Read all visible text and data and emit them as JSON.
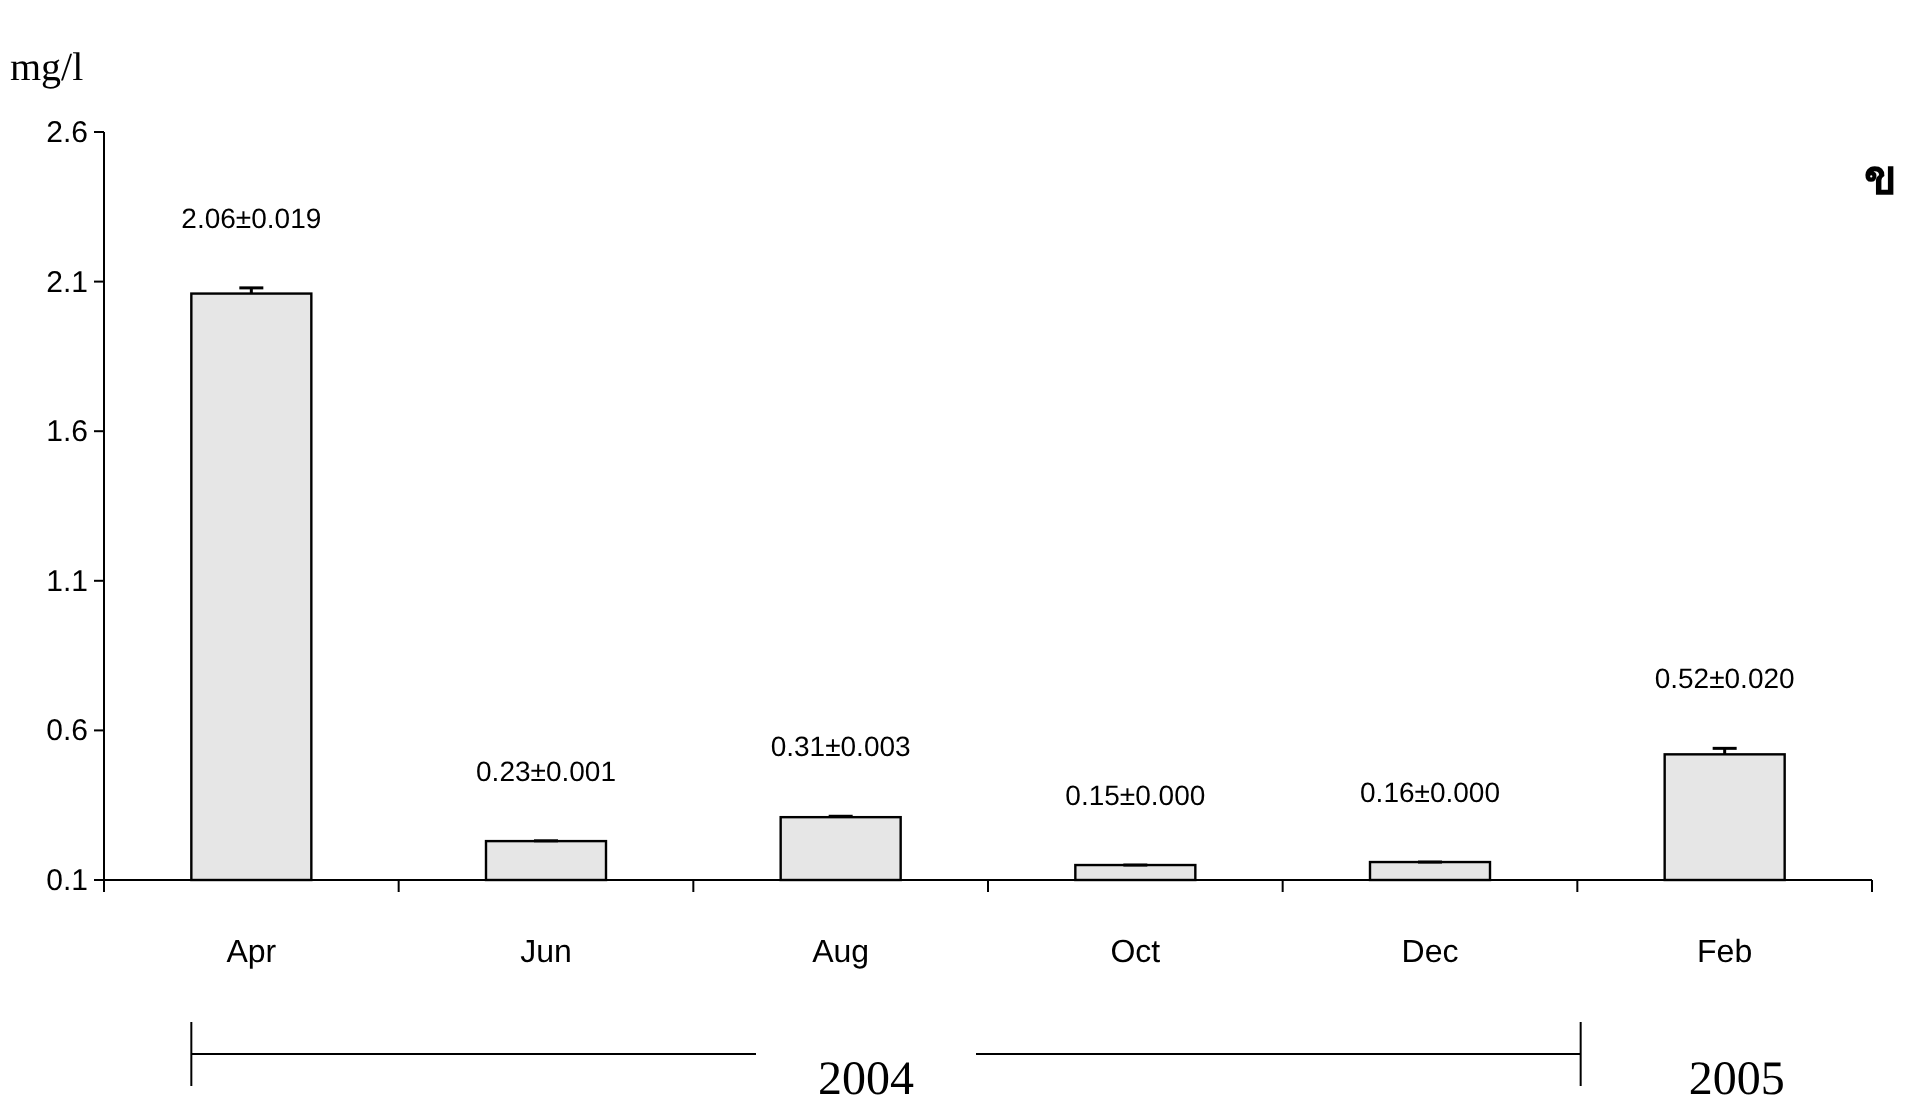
{
  "chart_data": {
    "type": "bar",
    "ylabel": "mg/l",
    "categories": [
      "Apr",
      "Jun",
      "Aug",
      "Oct",
      "Dec",
      "Feb"
    ],
    "values": [
      2.06,
      0.23,
      0.31,
      0.15,
      0.16,
      0.52
    ],
    "errors": [
      0.019,
      0.001,
      0.003,
      0,
      0,
      0.02
    ],
    "value_labels": [
      "2.06±0.019",
      "0.23±0.001",
      "0.31±0.003",
      "0.15±0.000",
      "0.16±0.000",
      "0.52±0.020"
    ],
    "color": "#e6e6e6",
    "ylim": [
      0.1,
      2.6
    ],
    "yticks": [
      0.1,
      0.6,
      1.1,
      1.6,
      2.1,
      2.6
    ],
    "grid": false,
    "annotations": [
      "2004",
      "2005",
      "ข"
    ]
  }
}
